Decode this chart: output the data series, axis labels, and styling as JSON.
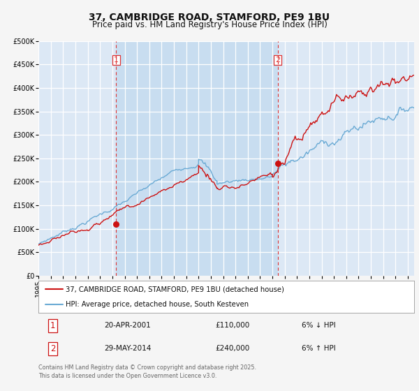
{
  "title": "37, CAMBRIDGE ROAD, STAMFORD, PE9 1BU",
  "subtitle": "Price paid vs. HM Land Registry's House Price Index (HPI)",
  "legend_line1": "37, CAMBRIDGE ROAD, STAMFORD, PE9 1BU (detached house)",
  "legend_line2": "HPI: Average price, detached house, South Kesteven",
  "transaction1_label": "1",
  "transaction1_date": "20-APR-2001",
  "transaction1_price": "£110,000",
  "transaction1_hpi": "6% ↓ HPI",
  "transaction2_label": "2",
  "transaction2_date": "29-MAY-2014",
  "transaction2_price": "£240,000",
  "transaction2_hpi": "6% ↑ HPI",
  "footnote": "Contains HM Land Registry data © Crown copyright and database right 2025.\nThis data is licensed under the Open Government Licence v3.0.",
  "vline1_x": 2001.3,
  "vline2_x": 2014.42,
  "marker1_x": 2001.3,
  "marker1_y": 110000,
  "marker2_x": 2014.42,
  "marker2_y": 240000,
  "ylim": [
    0,
    500000
  ],
  "xlim": [
    1995.0,
    2025.5
  ],
  "fig_bg_color": "#f5f5f5",
  "plot_bg_color": "#dce8f5",
  "plot_bg_highlight_color": "#c8ddf0",
  "grid_color": "#ffffff",
  "hpi_line_color": "#6aaad4",
  "price_line_color": "#cc1111",
  "vline_color": "#dd3333",
  "marker_color": "#cc1111",
  "title_fontsize": 10,
  "subtitle_fontsize": 8.5,
  "tick_fontsize": 7
}
